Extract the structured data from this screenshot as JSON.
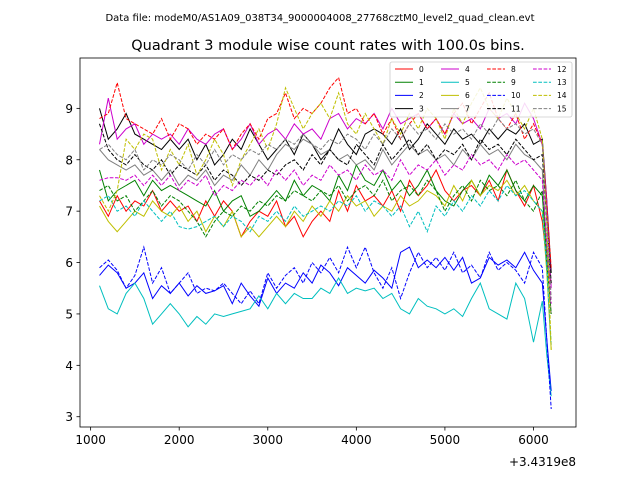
{
  "suptitle": "Data file: modeM0/AS1A09_038T34_9000004008_27768cztM0_level2_quad_clean.evt",
  "chart_data": {
    "type": "line",
    "title": "Quadrant 3 module wise count rates with 100.0s bins.",
    "xlabel": "",
    "ylabel": "",
    "x_offset_label": "+3.4319e8",
    "xlim": [
      880,
      6480
    ],
    "ylim": [
      2.8,
      9.98
    ],
    "xticks": [
      1000,
      2000,
      3000,
      4000,
      5000,
      6000
    ],
    "yticks": [
      3,
      4,
      5,
      6,
      7,
      8,
      9
    ],
    "grid": false,
    "legend_position": "top-right",
    "x": [
      1100,
      1200,
      1300,
      1400,
      1500,
      1600,
      1700,
      1800,
      1900,
      2000,
      2100,
      2200,
      2300,
      2400,
      2500,
      2600,
      2700,
      2800,
      2900,
      3000,
      3100,
      3200,
      3300,
      3400,
      3500,
      3600,
      3700,
      3800,
      3900,
      4000,
      4100,
      4200,
      4300,
      4400,
      4500,
      4600,
      4700,
      4800,
      4900,
      5000,
      5100,
      5200,
      5300,
      5400,
      5500,
      5600,
      5700,
      5800,
      5900,
      6000,
      6100,
      6150,
      6200
    ],
    "series": [
      {
        "name": "0",
        "color": "#ff0000",
        "dash": "solid",
        "values": [
          7.2,
          6.9,
          7.3,
          7.0,
          7.2,
          7.1,
          7.4,
          7.0,
          7.2,
          7.0,
          7.1,
          6.8,
          7.2,
          6.9,
          7.2,
          7.0,
          6.5,
          6.8,
          7.0,
          6.9,
          7.2,
          6.7,
          6.9,
          6.5,
          6.8,
          7.0,
          6.8,
          7.4,
          7.0,
          7.5,
          7.2,
          7.3,
          7.1,
          7.4,
          7.0,
          7.6,
          7.3,
          7.5,
          7.8,
          7.4,
          7.2,
          7.4,
          7.5,
          7.3,
          7.6,
          7.2,
          7.8,
          7.4,
          7.1,
          7.5,
          6.8,
          6.0,
          5.6
        ]
      },
      {
        "name": "1",
        "color": "#008000",
        "dash": "solid",
        "values": [
          7.8,
          7.2,
          7.4,
          7.5,
          7.6,
          7.3,
          7.6,
          7.4,
          7.5,
          7.4,
          7.3,
          7.2,
          7.1,
          7.4,
          7.0,
          7.2,
          7.3,
          6.9,
          7.0,
          7.2,
          7.4,
          7.2,
          7.6,
          7.3,
          7.5,
          7.4,
          7.2,
          7.7,
          7.4,
          7.9,
          7.6,
          7.5,
          7.8,
          7.4,
          7.6,
          7.3,
          7.5,
          7.8,
          7.4,
          7.2,
          7.1,
          7.4,
          7.6,
          7.3,
          7.7,
          7.5,
          7.8,
          7.4,
          7.2,
          7.5,
          7.3,
          6.2,
          5.8
        ]
      },
      {
        "name": "2",
        "color": "#0000ff",
        "dash": "solid",
        "values": [
          5.75,
          5.95,
          5.8,
          5.5,
          5.6,
          5.8,
          5.3,
          5.55,
          5.4,
          5.6,
          5.35,
          5.55,
          5.4,
          5.45,
          5.55,
          5.2,
          5.6,
          5.35,
          5.15,
          5.7,
          5.4,
          5.6,
          5.5,
          5.8,
          5.6,
          5.95,
          5.8,
          5.55,
          5.9,
          5.75,
          5.6,
          5.85,
          5.7,
          5.5,
          6.2,
          6.3,
          5.9,
          6.05,
          5.9,
          6.1,
          5.85,
          6.1,
          5.6,
          5.7,
          6.1,
          5.95,
          6.05,
          5.9,
          6.2,
          5.85,
          5.6,
          4.5,
          3.5
        ]
      },
      {
        "name": "3",
        "color": "#000000",
        "dash": "solid",
        "values": [
          9.0,
          8.4,
          8.6,
          8.9,
          8.5,
          8.4,
          8.3,
          8.2,
          8.4,
          8.2,
          8.4,
          8.0,
          8.3,
          7.9,
          8.1,
          8.4,
          8.2,
          8.6,
          8.3,
          8.0,
          8.2,
          8.4,
          8.1,
          8.5,
          8.3,
          8.0,
          8.2,
          8.6,
          8.3,
          8.1,
          8.5,
          8.6,
          8.5,
          8.3,
          8.6,
          8.2,
          8.4,
          8.7,
          8.5,
          8.3,
          8.6,
          8.4,
          8.5,
          8.3,
          8.6,
          8.4,
          8.6,
          8.5,
          8.7,
          8.3,
          8.4,
          7.2,
          5.8
        ]
      },
      {
        "name": "4",
        "color": "#cc00cc",
        "dash": "solid",
        "values": [
          8.3,
          9.2,
          8.4,
          8.6,
          8.7,
          8.3,
          8.5,
          8.4,
          8.5,
          8.3,
          8.6,
          8.4,
          8.3,
          8.5,
          8.6,
          8.2,
          8.4,
          8.7,
          8.3,
          8.5,
          8.6,
          8.4,
          8.7,
          8.5,
          8.6,
          8.4,
          8.8,
          8.9,
          8.6,
          8.8,
          8.7,
          8.9,
          8.6,
          9.0,
          8.7,
          8.8,
          8.9,
          8.6,
          8.8,
          8.5,
          8.9,
          8.7,
          8.8,
          8.6,
          9.0,
          8.8,
          8.9,
          8.7,
          9.1,
          8.8,
          8.3,
          7.2,
          5.5
        ]
      },
      {
        "name": "5",
        "color": "#00bfbf",
        "dash": "solid",
        "values": [
          5.55,
          5.1,
          5.0,
          5.4,
          5.6,
          5.3,
          4.8,
          5.0,
          5.2,
          5.0,
          4.75,
          4.95,
          4.8,
          5.0,
          4.95,
          5.0,
          5.05,
          5.1,
          5.35,
          5.1,
          5.4,
          5.2,
          5.4,
          5.3,
          5.3,
          5.5,
          5.4,
          5.7,
          5.4,
          5.5,
          5.45,
          5.5,
          5.3,
          5.4,
          5.1,
          5.0,
          5.3,
          5.15,
          5.1,
          5.0,
          5.1,
          4.95,
          5.3,
          5.6,
          5.1,
          5.0,
          4.9,
          5.6,
          5.3,
          4.45,
          5.25,
          4.2,
          3.4
        ]
      },
      {
        "name": "6",
        "color": "#bfbf00",
        "dash": "solid",
        "values": [
          7.1,
          6.8,
          6.6,
          6.8,
          7.0,
          6.9,
          7.2,
          7.0,
          6.9,
          7.1,
          6.8,
          7.0,
          6.6,
          6.9,
          6.7,
          7.0,
          6.5,
          6.7,
          6.5,
          6.7,
          6.9,
          6.7,
          7.0,
          6.8,
          7.1,
          6.9,
          7.2,
          7.0,
          7.3,
          7.1,
          7.2,
          6.9,
          7.1,
          7.0,
          7.3,
          7.1,
          7.2,
          7.4,
          7.3,
          7.1,
          7.5,
          7.2,
          7.6,
          7.3,
          7.5,
          7.4,
          7.6,
          7.3,
          7.5,
          7.2,
          7.0,
          5.8,
          4.3
        ]
      },
      {
        "name": "7",
        "color": "#808080",
        "dash": "solid",
        "values": [
          8.2,
          8.0,
          7.9,
          7.8,
          7.9,
          7.7,
          7.8,
          7.6,
          7.8,
          7.5,
          7.7,
          7.6,
          7.8,
          7.5,
          7.7,
          7.6,
          7.9,
          7.7,
          8.0,
          7.8,
          8.1,
          8.3,
          8.2,
          8.4,
          8.3,
          8.1,
          8.2,
          8.0,
          8.1,
          7.9,
          8.0,
          7.8,
          8.2,
          7.9,
          8.1,
          8.3,
          8.1,
          8.2,
          8.0,
          8.1,
          7.9,
          8.2,
          8.0,
          8.3,
          8.1,
          8.2,
          8.0,
          8.3,
          8.1,
          8.0,
          7.8,
          6.2,
          5.0
        ]
      },
      {
        "name": "8",
        "color": "#ff0000",
        "dash": "dashed",
        "values": [
          8.8,
          8.9,
          9.5,
          8.8,
          8.7,
          8.6,
          8.5,
          8.8,
          8.4,
          8.7,
          8.6,
          8.3,
          8.5,
          8.4,
          8.6,
          8.2,
          8.5,
          8.7,
          8.4,
          8.8,
          8.9,
          9.3,
          8.8,
          9.0,
          8.9,
          9.1,
          9.4,
          9.6,
          8.9,
          9.0,
          8.7,
          8.9,
          8.5,
          8.8,
          8.4,
          8.7,
          8.9,
          8.6,
          8.8,
          8.5,
          8.9,
          9.1,
          8.7,
          9.0,
          9.3,
          8.8,
          8.6,
          8.9,
          8.4,
          8.7,
          8.3,
          7.1,
          5.9
        ]
      },
      {
        "name": "9",
        "color": "#008000",
        "dash": "dashed",
        "values": [
          7.4,
          7.5,
          7.2,
          7.3,
          7.0,
          7.2,
          7.4,
          7.1,
          7.3,
          7.2,
          7.0,
          6.8,
          6.5,
          6.8,
          7.0,
          6.9,
          7.1,
          7.0,
          7.2,
          7.1,
          7.3,
          7.2,
          7.4,
          7.3,
          7.2,
          7.4,
          7.3,
          7.5,
          7.2,
          7.4,
          7.5,
          7.3,
          7.6,
          7.2,
          7.4,
          7.5,
          7.3,
          7.6,
          7.4,
          7.0,
          7.3,
          7.5,
          7.2,
          7.6,
          7.4,
          7.5,
          7.3,
          7.6,
          7.2,
          7.0,
          7.4,
          6.0,
          5.0
        ]
      },
      {
        "name": "10",
        "color": "#0000ff",
        "dash": "dashed",
        "values": [
          5.9,
          6.05,
          5.85,
          5.5,
          5.75,
          6.3,
          5.6,
          5.9,
          5.4,
          5.6,
          5.8,
          5.4,
          5.5,
          5.45,
          5.6,
          5.4,
          5.2,
          5.45,
          5.2,
          5.8,
          5.5,
          5.75,
          5.9,
          5.6,
          6.0,
          5.8,
          6.1,
          5.8,
          6.3,
          5.9,
          6.3,
          5.8,
          5.5,
          5.9,
          5.3,
          5.8,
          6.2,
          5.9,
          6.1,
          5.85,
          6.2,
          5.8,
          5.95,
          5.7,
          6.2,
          5.85,
          6.0,
          5.85,
          5.6,
          6.2,
          5.9,
          4.5,
          3.15
        ]
      },
      {
        "name": "11",
        "color": "#000000",
        "dash": "dashed",
        "values": [
          8.7,
          8.2,
          8.0,
          7.9,
          8.1,
          7.9,
          7.8,
          8.0,
          7.7,
          7.9,
          7.8,
          7.7,
          7.9,
          7.6,
          7.8,
          7.7,
          7.5,
          7.7,
          7.6,
          7.8,
          7.7,
          7.9,
          8.0,
          7.8,
          8.1,
          7.9,
          8.2,
          8.0,
          7.9,
          8.3,
          8.1,
          7.9,
          8.3,
          8.0,
          8.2,
          8.4,
          8.1,
          8.3,
          8.0,
          8.2,
          8.1,
          8.3,
          8.0,
          8.4,
          8.2,
          8.3,
          8.1,
          8.4,
          8.2,
          8.0,
          8.1,
          6.8,
          5.6
        ]
      },
      {
        "name": "12",
        "color": "#cc00cc",
        "dash": "dashed",
        "values": [
          7.6,
          7.65,
          7.65,
          7.6,
          7.7,
          7.5,
          7.7,
          7.5,
          7.7,
          7.4,
          7.6,
          7.5,
          7.7,
          7.3,
          7.5,
          7.4,
          7.6,
          7.5,
          7.7,
          7.5,
          7.8,
          7.6,
          7.8,
          7.5,
          7.7,
          7.6,
          7.9,
          7.7,
          7.8,
          7.6,
          7.9,
          7.7,
          7.8,
          7.6,
          8.0,
          7.7,
          7.9,
          7.8,
          8.0,
          7.7,
          7.9,
          7.8,
          8.1,
          7.9,
          8.0,
          7.8,
          8.1,
          7.9,
          8.0,
          7.8,
          7.6,
          6.4,
          5.2
        ]
      },
      {
        "name": "13",
        "color": "#00bfbf",
        "dash": "dashed",
        "values": [
          7.2,
          7.3,
          7.0,
          7.1,
          6.9,
          7.2,
          7.0,
          6.8,
          7.0,
          6.7,
          6.65,
          6.7,
          6.8,
          6.9,
          6.7,
          6.9,
          6.8,
          6.6,
          6.9,
          6.8,
          7.0,
          6.8,
          7.1,
          6.9,
          7.0,
          7.1,
          7.0,
          7.2,
          7.1,
          7.3,
          7.0,
          7.2,
          7.1,
          6.9,
          7.1,
          6.7,
          7.0,
          6.6,
          7.1,
          6.9,
          7.2,
          7.0,
          7.3,
          7.1,
          7.4,
          7.2,
          7.5,
          7.3,
          7.4,
          7.2,
          7.0,
          5.9,
          4.4
        ]
      },
      {
        "name": "14",
        "color": "#bfbf00",
        "dash": "dashed",
        "values": [
          7.3,
          7.0,
          7.4,
          8.4,
          8.2,
          8.5,
          8.4,
          7.8,
          8.2,
          7.9,
          8.3,
          7.7,
          8.0,
          8.4,
          8.1,
          7.5,
          8.0,
          8.3,
          8.6,
          8.2,
          8.7,
          9.4,
          9.0,
          8.6,
          8.9,
          9.1,
          8.8,
          9.3,
          8.7,
          8.5,
          8.9,
          8.6,
          8.3,
          8.8,
          8.5,
          8.9,
          8.6,
          9.0,
          8.8,
          8.4,
          9.0,
          8.7,
          9.1,
          9.4,
          9.0,
          8.8,
          9.2,
          8.9,
          8.6,
          9.0,
          8.4,
          6.8,
          4.3
        ]
      },
      {
        "name": "15",
        "color": "#808080",
        "dash": "dashed",
        "values": [
          8.2,
          8.3,
          8.1,
          8.0,
          8.2,
          7.8,
          8.0,
          7.9,
          8.1,
          8.0,
          7.8,
          8.1,
          7.9,
          8.2,
          7.9,
          8.1,
          8.0,
          8.2,
          8.1,
          8.3,
          8.2,
          8.4,
          8.3,
          8.5,
          8.3,
          8.2,
          8.4,
          8.3,
          8.5,
          8.4,
          8.2,
          8.5,
          8.3,
          8.6,
          8.4,
          8.7,
          8.5,
          8.6,
          8.4,
          8.7,
          8.5,
          8.6,
          8.4,
          8.7,
          8.5,
          8.8,
          8.6,
          8.7,
          8.5,
          8.6,
          8.3,
          6.9,
          5.3
        ]
      }
    ]
  }
}
